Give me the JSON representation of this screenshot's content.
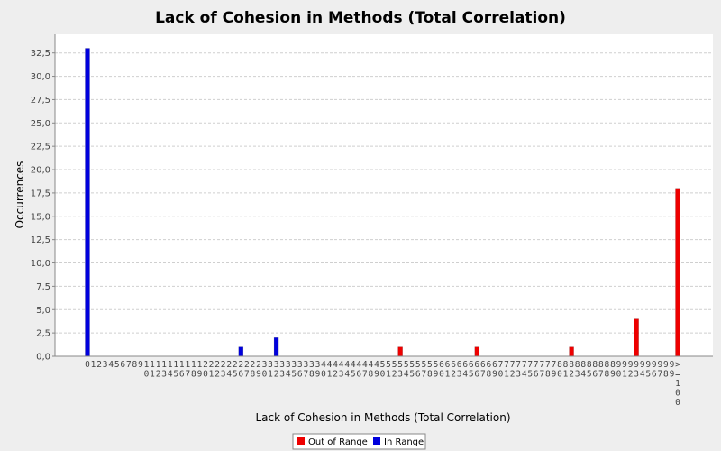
{
  "chart_data": {
    "type": "bar",
    "title": "Lack of Cohesion in Methods (Total Correlation)",
    "xlabel": "Lack of Cohesion in Methods (Total Correlation)",
    "ylabel": "Occurrences",
    "ylim": [
      0,
      34.5
    ],
    "yticks": [
      "0,0",
      "2,5",
      "5,0",
      "7,5",
      "10,0",
      "12,5",
      "15,0",
      "17,5",
      "20,0",
      "22,5",
      "25,0",
      "27,5",
      "30,0",
      "32,5"
    ],
    "ytick_values": [
      0,
      2.5,
      5,
      7.5,
      10,
      12.5,
      15,
      17.5,
      20,
      22.5,
      25,
      27.5,
      30,
      32.5
    ],
    "grid": true,
    "legend_position": "bottom",
    "categories": [
      "0",
      "1",
      "2",
      "3",
      "4",
      "5",
      "6",
      "7",
      "8",
      "9",
      "10",
      "11",
      "12",
      "13",
      "14",
      "15",
      "16",
      "17",
      "18",
      "19",
      "20",
      "21",
      "22",
      "23",
      "24",
      "25",
      "26",
      "27",
      "28",
      "29",
      "30",
      "31",
      "32",
      "33",
      "34",
      "35",
      "36",
      "37",
      "38",
      "39",
      "40",
      "41",
      "42",
      "43",
      "44",
      "45",
      "46",
      "47",
      "48",
      "49",
      "50",
      "51",
      "52",
      "53",
      "54",
      "55",
      "56",
      "57",
      "58",
      "59",
      "60",
      "61",
      "62",
      "63",
      "64",
      "65",
      "66",
      "67",
      "68",
      "69",
      "70",
      "71",
      "72",
      "73",
      "74",
      "75",
      "76",
      "77",
      "78",
      "79",
      "80",
      "81",
      "82",
      "83",
      "84",
      "85",
      "86",
      "87",
      "88",
      "89",
      "90",
      "91",
      "92",
      "93",
      "94",
      "95",
      "96",
      "97",
      "98",
      "99",
      ">=100"
    ],
    "series": [
      {
        "name": "Out of Range",
        "color": "#ee0000",
        "points": [
          {
            "category": "53",
            "value": 1
          },
          {
            "category": "66",
            "value": 1
          },
          {
            "category": "82",
            "value": 1
          },
          {
            "category": "93",
            "value": 4
          },
          {
            "category": ">=100",
            "value": 18
          }
        ]
      },
      {
        "name": "In Range",
        "color": "#0000dd",
        "points": [
          {
            "category": "0",
            "value": 33
          },
          {
            "category": "26",
            "value": 1
          },
          {
            "category": "32",
            "value": 2
          }
        ]
      }
    ]
  }
}
